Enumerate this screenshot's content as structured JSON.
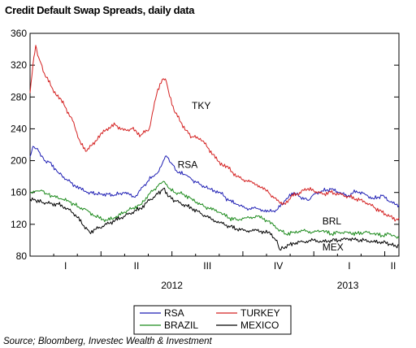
{
  "chart_data": {
    "type": "line",
    "title": "Credit Default Swap Spreads, daily data",
    "source": "Source; Bloomberg, Investec Wealth & Investment",
    "ylim": [
      80,
      360
    ],
    "yticks": [
      80,
      120,
      160,
      200,
      240,
      280,
      320,
      360
    ],
    "xlim": [
      0,
      1.3
    ],
    "quarter_labels": [
      {
        "label": "I",
        "x": 0.125
      },
      {
        "label": "II",
        "x": 0.375
      },
      {
        "label": "III",
        "x": 0.625
      },
      {
        "label": "IV",
        "x": 0.875
      },
      {
        "label": "I",
        "x": 1.125
      },
      {
        "label": "II",
        "x": 1.28
      }
    ],
    "year_labels": [
      {
        "label": "2012",
        "x": 0.5
      },
      {
        "label": "2013",
        "x": 1.12
      }
    ],
    "annotations": [
      {
        "text": "TKY",
        "x": 0.57,
        "y": 265
      },
      {
        "text": "RSA",
        "x": 0.52,
        "y": 191
      },
      {
        "text": "BRL",
        "x": 1.03,
        "y": 120
      },
      {
        "text": "MEX",
        "x": 1.03,
        "y": 87
      }
    ],
    "legend_position": "bottom-center",
    "series": [
      {
        "name": "RSA",
        "color": "#1f1fb4",
        "x": [
          0,
          0.01,
          0.03,
          0.05,
          0.07,
          0.1,
          0.13,
          0.16,
          0.2,
          0.25,
          0.3,
          0.33,
          0.37,
          0.4,
          0.43,
          0.45,
          0.47,
          0.48,
          0.5,
          0.52,
          0.55,
          0.57,
          0.6,
          0.63,
          0.67,
          0.7,
          0.73,
          0.76,
          0.8,
          0.84,
          0.87,
          0.9,
          0.93,
          0.95,
          0.98,
          1.0,
          1.03,
          1.06,
          1.09,
          1.12,
          1.15,
          1.18,
          1.21,
          1.24,
          1.27,
          1.29,
          1.3
        ],
        "y": [
          205,
          218,
          212,
          200,
          198,
          185,
          176,
          168,
          160,
          158,
          157,
          160,
          154,
          168,
          180,
          185,
          200,
          206,
          196,
          185,
          182,
          176,
          170,
          165,
          160,
          150,
          145,
          140,
          140,
          136,
          138,
          150,
          160,
          155,
          150,
          158,
          162,
          164,
          160,
          155,
          162,
          158,
          152,
          156,
          148,
          145,
          144
        ]
      },
      {
        "name": "TURKEY",
        "color": "#d42020",
        "x": [
          0,
          0.01,
          0.02,
          0.03,
          0.05,
          0.08,
          0.12,
          0.15,
          0.18,
          0.2,
          0.23,
          0.27,
          0.3,
          0.33,
          0.36,
          0.39,
          0.42,
          0.45,
          0.47,
          0.48,
          0.5,
          0.52,
          0.55,
          0.57,
          0.6,
          0.63,
          0.66,
          0.7,
          0.73,
          0.76,
          0.8,
          0.84,
          0.87,
          0.9,
          0.92,
          0.95,
          0.98,
          1.0,
          1.03,
          1.06,
          1.09,
          1.12,
          1.15,
          1.18,
          1.21,
          1.24,
          1.27,
          1.29,
          1.3
        ],
        "y": [
          285,
          320,
          345,
          330,
          310,
          290,
          270,
          250,
          220,
          212,
          225,
          240,
          245,
          238,
          240,
          232,
          240,
          290,
          303,
          300,
          270,
          255,
          238,
          230,
          228,
          215,
          200,
          190,
          180,
          175,
          170,
          160,
          150,
          145,
          155,
          160,
          165,
          162,
          158,
          160,
          158,
          155,
          152,
          148,
          142,
          135,
          130,
          126,
          128
        ]
      },
      {
        "name": "BRAZIL",
        "color": "#1c8a1c",
        "x": [
          0,
          0.02,
          0.04,
          0.06,
          0.08,
          0.11,
          0.14,
          0.17,
          0.2,
          0.23,
          0.27,
          0.3,
          0.33,
          0.36,
          0.39,
          0.42,
          0.45,
          0.47,
          0.49,
          0.51,
          0.54,
          0.57,
          0.6,
          0.63,
          0.67,
          0.7,
          0.73,
          0.76,
          0.8,
          0.84,
          0.87,
          0.9,
          0.93,
          0.96,
          1.0,
          1.03,
          1.06,
          1.09,
          1.12,
          1.15,
          1.18,
          1.21,
          1.24,
          1.27,
          1.29,
          1.3
        ],
        "y": [
          160,
          162,
          163,
          158,
          155,
          152,
          148,
          142,
          138,
          130,
          125,
          128,
          135,
          140,
          145,
          158,
          168,
          174,
          165,
          160,
          158,
          152,
          145,
          140,
          135,
          128,
          126,
          128,
          130,
          124,
          115,
          108,
          110,
          112,
          110,
          112,
          108,
          110,
          110,
          108,
          110,
          108,
          106,
          108,
          104,
          103
        ]
      },
      {
        "name": "MEXICO",
        "color": "#000000",
        "x": [
          0,
          0.02,
          0.04,
          0.07,
          0.1,
          0.13,
          0.16,
          0.19,
          0.21,
          0.24,
          0.27,
          0.3,
          0.33,
          0.36,
          0.39,
          0.42,
          0.45,
          0.47,
          0.49,
          0.51,
          0.54,
          0.57,
          0.6,
          0.63,
          0.67,
          0.7,
          0.73,
          0.76,
          0.8,
          0.84,
          0.87,
          0.88,
          0.9,
          0.93,
          0.96,
          1.0,
          1.03,
          1.06,
          1.09,
          1.12,
          1.15,
          1.18,
          1.21,
          1.24,
          1.27,
          1.29,
          1.3
        ],
        "y": [
          152,
          150,
          148,
          146,
          145,
          140,
          132,
          118,
          110,
          115,
          120,
          125,
          130,
          135,
          140,
          150,
          158,
          165,
          155,
          150,
          145,
          140,
          134,
          128,
          122,
          118,
          114,
          112,
          112,
          110,
          100,
          88,
          92,
          96,
          98,
          100,
          98,
          100,
          100,
          102,
          100,
          100,
          98,
          98,
          95,
          92,
          94
        ]
      }
    ]
  }
}
